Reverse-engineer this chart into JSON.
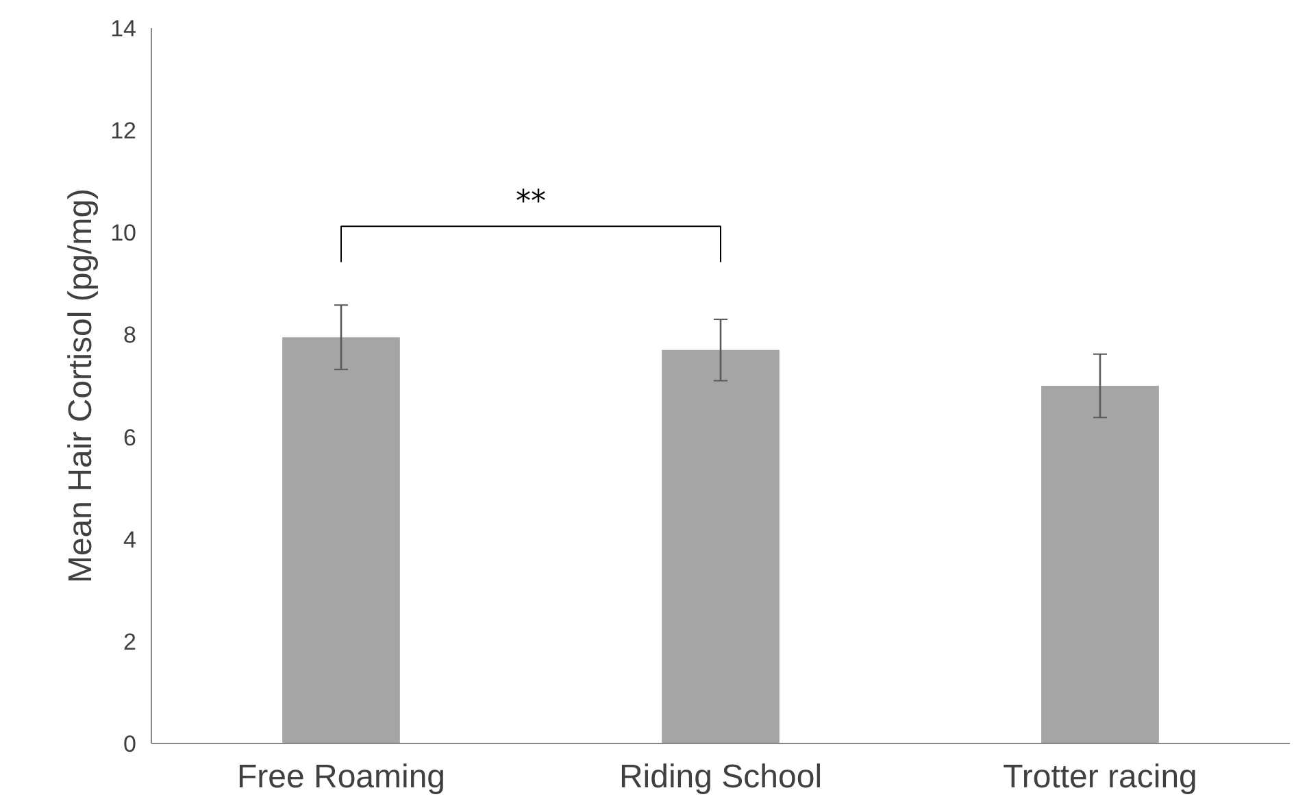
{
  "chart_data": {
    "type": "bar",
    "ylabel": "Mean Hair Cortisol (pg/mg)",
    "categories": [
      "Free Roaming",
      "Riding School",
      "Trotter racing"
    ],
    "values": [
      7.95,
      7.7,
      7.0
    ],
    "errors": [
      0.63,
      0.6,
      0.62
    ],
    "color": "#a5a5a5",
    "ylim": [
      0,
      14
    ],
    "yticks": [
      0,
      2,
      4,
      6,
      8,
      10,
      12,
      14
    ],
    "grid": false,
    "annotations": [
      "**"
    ]
  }
}
